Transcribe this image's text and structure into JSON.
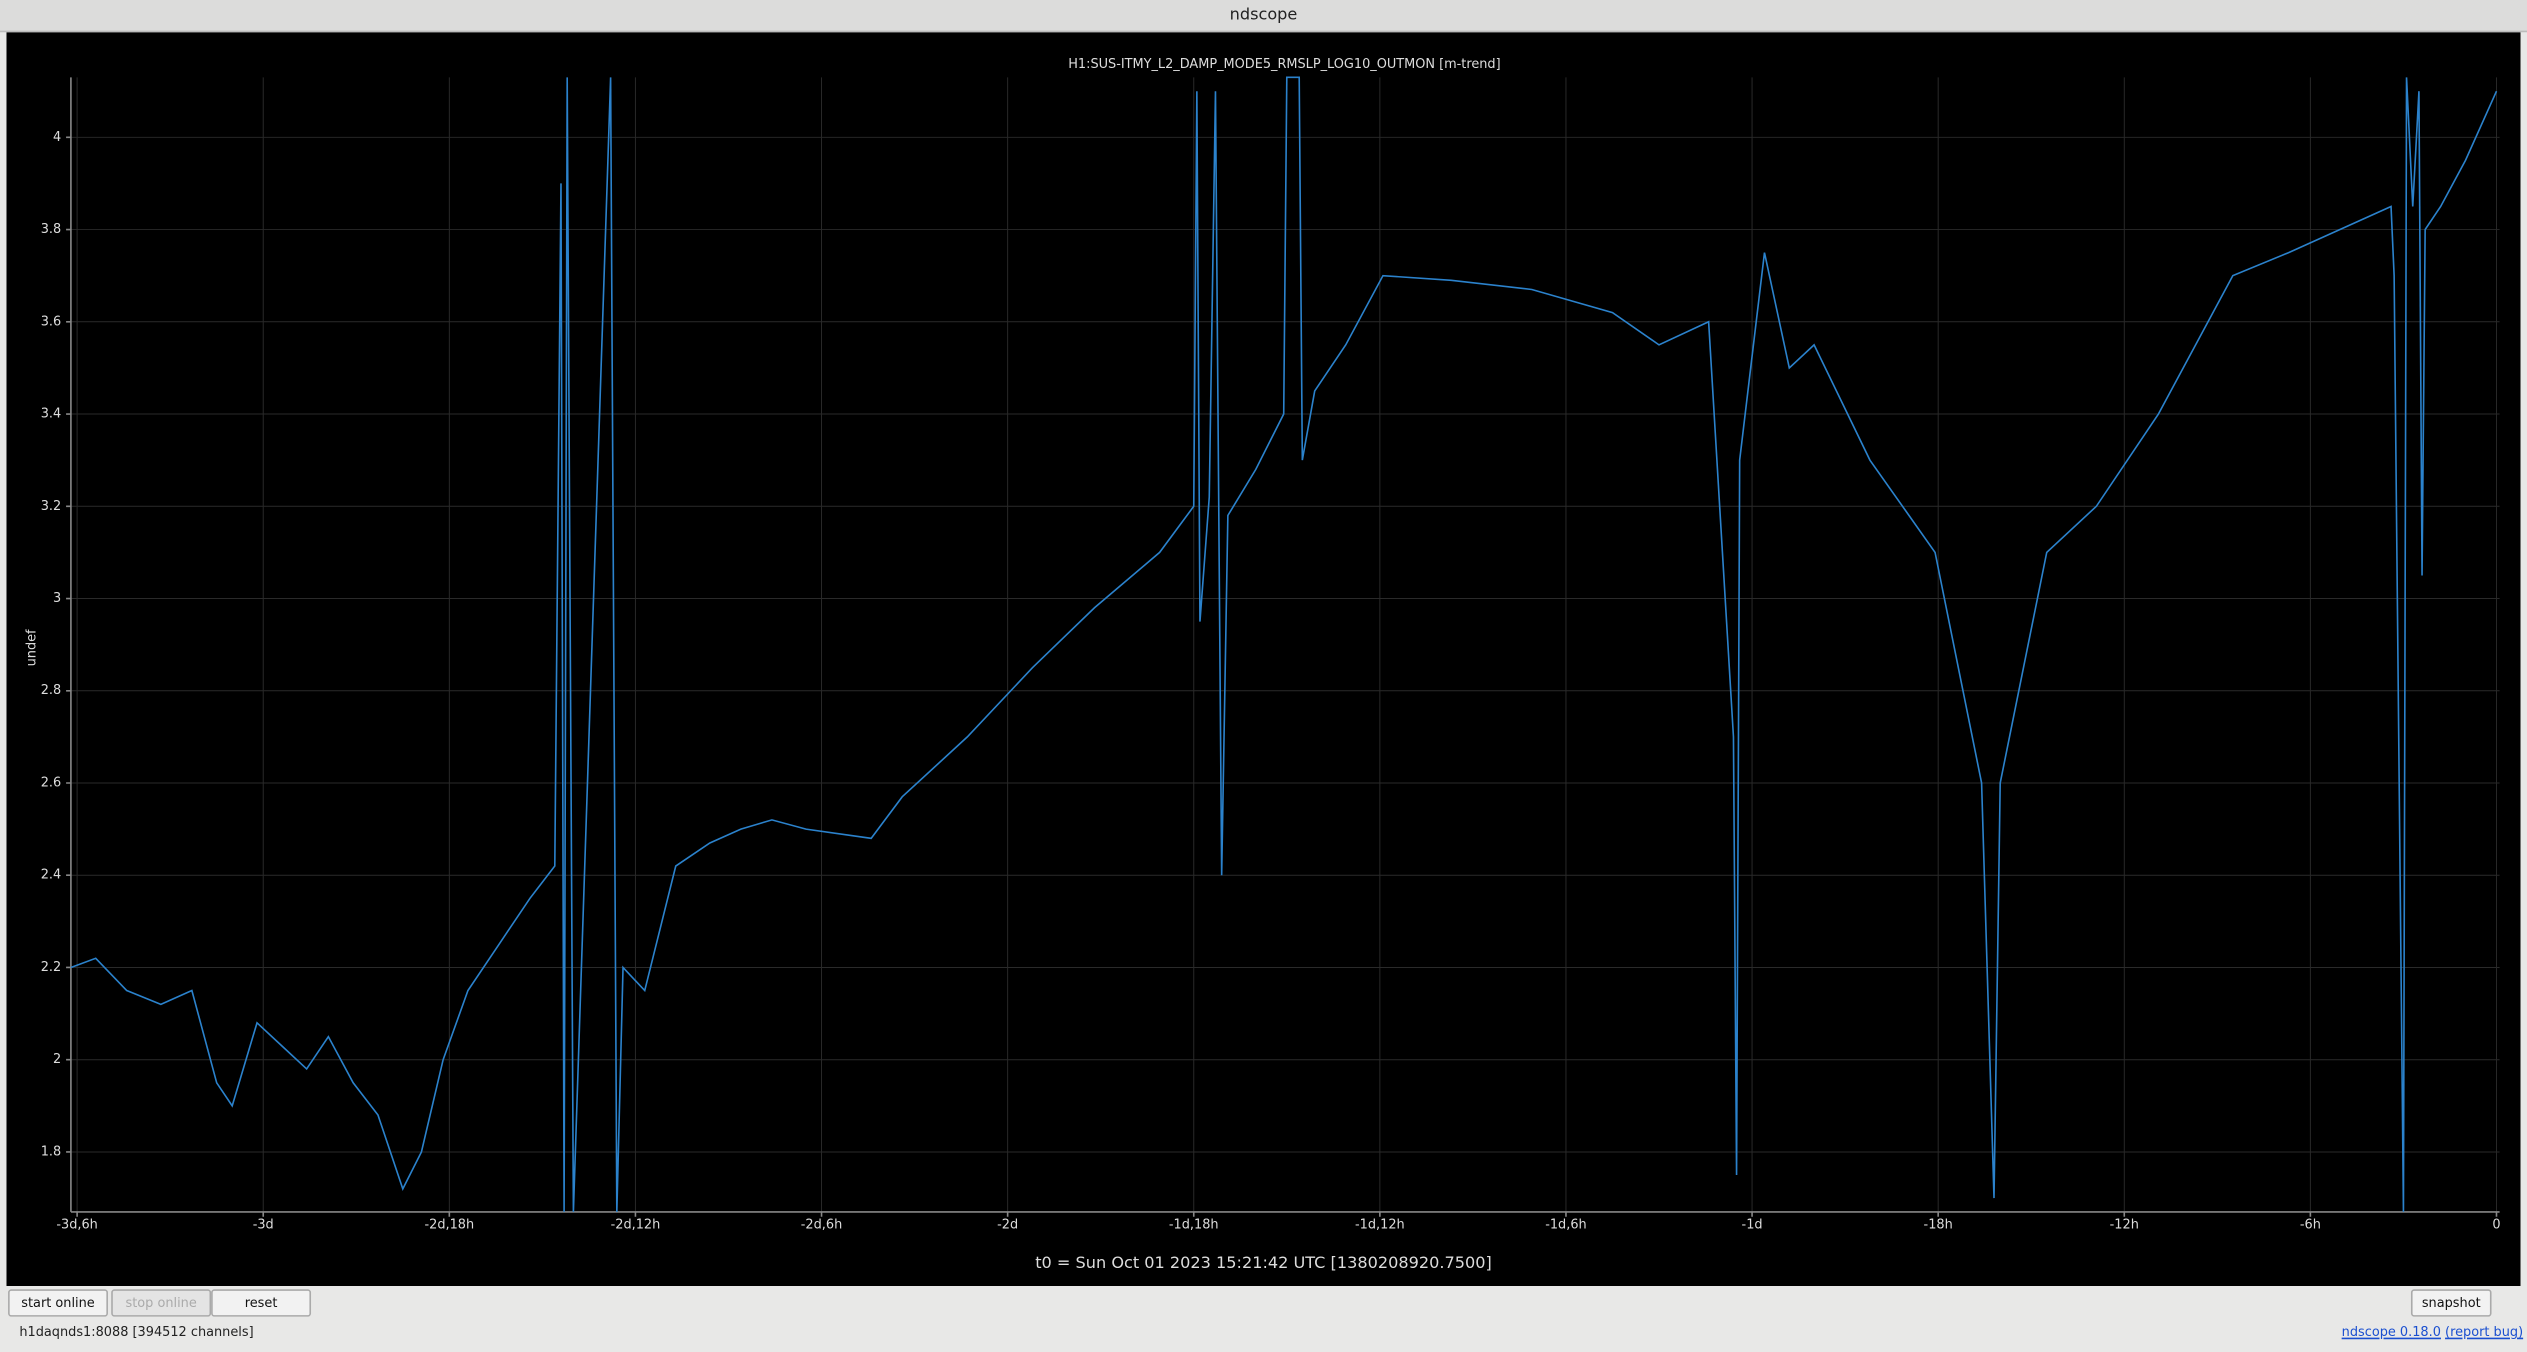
{
  "window": {
    "title": "ndscope"
  },
  "chart_data": {
    "type": "line",
    "title": "H1:SUS-ITMY_L2_DAMP_MODE5_RMSLP_LOG10_OUTMON [m-trend]",
    "y_label": "undef",
    "color": "#2b82cc",
    "grid": true,
    "xlim": [
      -78.2,
      0.1
    ],
    "ylim": [
      1.67,
      4.13
    ],
    "xticks": [
      {
        "value": -78,
        "label": "-3d,6h"
      },
      {
        "value": -72,
        "label": "-3d"
      },
      {
        "value": -66,
        "label": "-2d,18h"
      },
      {
        "value": -60,
        "label": "-2d,12h"
      },
      {
        "value": -54,
        "label": "-2d,6h"
      },
      {
        "value": -48,
        "label": "-2d"
      },
      {
        "value": -42,
        "label": "-1d,18h"
      },
      {
        "value": -36,
        "label": "-1d,12h"
      },
      {
        "value": -30,
        "label": "-1d,6h"
      },
      {
        "value": -24,
        "label": "-1d"
      },
      {
        "value": -18,
        "label": "-18h"
      },
      {
        "value": -12,
        "label": "-12h"
      },
      {
        "value": -6,
        "label": "-6h"
      },
      0
    ],
    "yticks": [
      1.8,
      2,
      2.2,
      2.4,
      2.6,
      2.8,
      3,
      3.2,
      3.4,
      3.6,
      3.8,
      4
    ],
    "x": [
      -78.2,
      -77.4,
      -76.4,
      -75.3,
      -74.3,
      -73.5,
      -73.0,
      -72.2,
      -71.4,
      -70.6,
      -69.9,
      -69.1,
      -68.3,
      -67.5,
      -66.9,
      -66.2,
      -65.4,
      -64.4,
      -63.4,
      -62.6,
      -62.4,
      -62.3,
      -62.2,
      -62.0,
      -60.8,
      -60.6,
      -60.4,
      -59.7,
      -58.7,
      -57.6,
      -56.6,
      -55.6,
      -54.5,
      -52.4,
      -51.4,
      -49.3,
      -47.2,
      -45.2,
      -43.1,
      -42.0,
      -41.9,
      -41.8,
      -41.5,
      -41.3,
      -41.1,
      -40.9,
      -40.0,
      -39.1,
      -39.0,
      -38.6,
      -38.5,
      -38.1,
      -37.1,
      -35.9,
      -33.7,
      -31.1,
      -28.5,
      -27.0,
      -25.4,
      -24.6,
      -24.5,
      -24.4,
      -23.6,
      -22.8,
      -22.0,
      -20.2,
      -18.1,
      -16.6,
      -16.2,
      -16.0,
      -14.5,
      -12.9,
      -10.9,
      -8.5,
      -6.7,
      -3.4,
      -3.3,
      -3.0,
      -2.9,
      -2.7,
      -2.5,
      -2.4,
      -2.3,
      -1.8,
      -1.0,
      0
    ],
    "values": [
      2.2,
      2.22,
      2.15,
      2.12,
      2.15,
      1.95,
      1.9,
      2.08,
      2.03,
      1.98,
      2.05,
      1.95,
      1.88,
      1.72,
      1.8,
      2.0,
      2.15,
      2.25,
      2.35,
      2.42,
      3.9,
      1.67,
      4.13,
      1.67,
      4.13,
      1.67,
      2.2,
      2.15,
      2.42,
      2.47,
      2.5,
      2.52,
      2.5,
      2.48,
      2.57,
      2.7,
      2.85,
      2.98,
      3.1,
      3.2,
      4.1,
      2.95,
      3.22,
      4.1,
      2.4,
      3.18,
      3.28,
      3.4,
      4.13,
      4.13,
      3.3,
      3.45,
      3.55,
      3.7,
      3.69,
      3.67,
      3.62,
      3.55,
      3.6,
      2.7,
      1.75,
      3.3,
      3.75,
      3.5,
      3.55,
      3.3,
      3.1,
      2.6,
      1.7,
      2.6,
      3.1,
      3.2,
      3.4,
      3.7,
      3.75,
      3.85,
      3.7,
      1.67,
      4.13,
      3.85,
      4.1,
      3.05,
      3.8,
      3.85,
      3.95,
      4.1
    ]
  },
  "footer": {
    "t0": "t0 = Sun Oct 01 2023 15:21:42 UTC [1380208920.7500]"
  },
  "buttons": [
    "start online",
    "stop online",
    "reset",
    "snapshot"
  ],
  "status": {
    "server": "h1daqnds1:8088  [394512 channels]",
    "version": "ndscope 0.18.0",
    "report": "(report bug)"
  }
}
